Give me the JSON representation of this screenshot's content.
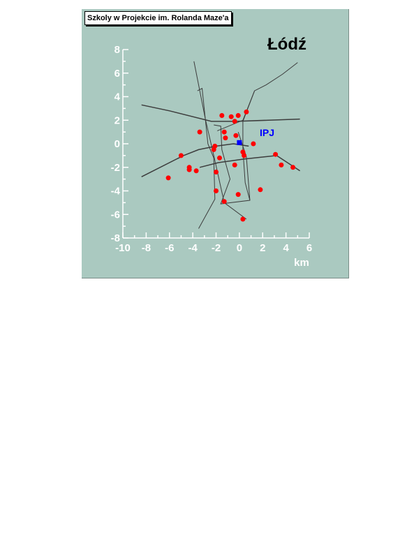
{
  "title": "Szkoly w Projekcie im. Rolanda Maze'a",
  "city_label": "Łódź",
  "chart_data": {
    "type": "scatter",
    "xlabel": "km",
    "ylabel": "",
    "xlim": [
      -10,
      6
    ],
    "ylim": [
      -8,
      8
    ],
    "x_ticks": [
      -10,
      -8,
      -6,
      -4,
      -2,
      0,
      2,
      4,
      6
    ],
    "y_ticks": [
      -8,
      -6,
      -4,
      -2,
      0,
      2,
      4,
      6,
      8
    ],
    "grid": false,
    "colors": {
      "background": "#aac9c0",
      "schools": "#ff0000",
      "ipj": "#0000ff",
      "roads": "#3c3c3c",
      "axes": "#ffffff"
    },
    "landmark": {
      "label": "IPJ",
      "x": 0.0,
      "y": 0.1
    },
    "series": [
      {
        "points": [
          [
            -1.5,
            2.4
          ],
          [
            -0.7,
            2.3
          ],
          [
            -0.1,
            2.4
          ],
          [
            0.6,
            2.7
          ],
          [
            -0.4,
            1.9
          ],
          [
            -3.4,
            1.0
          ],
          [
            -1.3,
            1.0
          ],
          [
            -1.2,
            0.5
          ],
          [
            -0.3,
            0.7
          ],
          [
            1.2,
            0.0
          ],
          [
            -2.1,
            -0.2
          ],
          [
            -2.2,
            -0.5
          ],
          [
            0.3,
            -0.7
          ],
          [
            0.4,
            -1.0
          ],
          [
            -1.7,
            -1.2
          ],
          [
            -5.0,
            -1.0
          ],
          [
            -4.3,
            -2.0
          ],
          [
            -4.3,
            -2.2
          ],
          [
            -3.7,
            -2.3
          ],
          [
            -0.4,
            -1.8
          ],
          [
            3.1,
            -0.9
          ],
          [
            3.6,
            -1.8
          ],
          [
            4.6,
            -2.0
          ],
          [
            -6.1,
            -2.9
          ],
          [
            -2.0,
            -2.4
          ],
          [
            -2.0,
            -4.0
          ],
          [
            1.8,
            -3.9
          ],
          [
            -0.1,
            -4.3
          ],
          [
            -1.3,
            -4.9
          ],
          [
            0.3,
            -6.4
          ]
        ]
      }
    ],
    "roads": [
      [
        [
          -8.4,
          3.3
        ],
        [
          -6.0,
          2.8
        ],
        [
          -2.4,
          1.9
        ],
        [
          -0.3,
          1.9
        ],
        [
          5.2,
          2.1
        ]
      ],
      [
        [
          -8.4,
          -2.8
        ],
        [
          -4.8,
          -1.0
        ],
        [
          -3.5,
          -0.5
        ],
        [
          -2.0,
          -0.2
        ],
        [
          -0.5,
          0.0
        ],
        [
          0.8,
          -0.2
        ]
      ],
      [
        [
          -3.4,
          -2.0
        ],
        [
          -1.8,
          -1.6
        ],
        [
          0.4,
          -1.3
        ],
        [
          3.2,
          -1.0
        ],
        [
          5.2,
          -2.3
        ]
      ],
      [
        [
          -3.9,
          7.0
        ],
        [
          -2.9,
          2.0
        ],
        [
          -2.2,
          -1.0
        ],
        [
          -1.3,
          -5.0
        ],
        [
          0.6,
          -6.4
        ]
      ],
      [
        [
          -3.6,
          4.5
        ],
        [
          -3.2,
          4.7
        ],
        [
          -2.7,
          0.0
        ],
        [
          -2.2,
          -1.2
        ],
        [
          -2.1,
          -4.7
        ],
        [
          -3.5,
          -7.2
        ]
      ],
      [
        [
          -2.2,
          1.6
        ],
        [
          -1.6,
          1.5
        ],
        [
          -1.5,
          -0.5
        ],
        [
          -0.8,
          -3.0
        ],
        [
          -1.6,
          -5.1
        ],
        [
          0.9,
          -4.8
        ],
        [
          0.6,
          -1.1
        ],
        [
          -0.1,
          1.0
        ]
      ],
      [
        [
          -1.9,
          1.1
        ],
        [
          0.3,
          2.0
        ],
        [
          1.3,
          4.5
        ],
        [
          2.3,
          5.0
        ],
        [
          3.7,
          5.9
        ],
        [
          5.0,
          6.9
        ]
      ],
      [
        [
          1.3,
          4.5
        ],
        [
          0.3,
          1.9
        ],
        [
          0.3,
          -0.5
        ],
        [
          0.5,
          -3.3
        ],
        [
          0.9,
          -4.8
        ]
      ]
    ]
  }
}
